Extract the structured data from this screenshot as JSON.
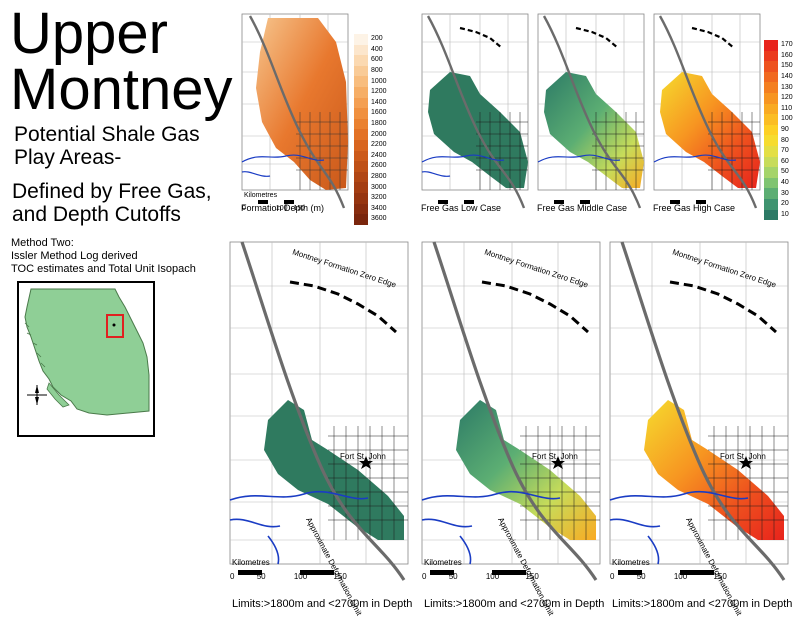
{
  "title_line1": "Upper",
  "title_line2": "Montney",
  "subtitle_line1": "Potential Shale Gas",
  "subtitle_line2": "Play Areas-",
  "defined_line1": "Defined by Free Gas,",
  "defined_line2": "and Depth Cutoffs",
  "method_line1": "Method Two:",
  "method_line2": "Issler Method Log derived",
  "method_line3": "TOC estimates and Total Unit Isopach",
  "small_maps": [
    {
      "caption": "Formation Depth (m)"
    },
    {
      "caption": "Free Gas Low Case"
    },
    {
      "caption": "Free Gas Middle Case"
    },
    {
      "caption": "Free Gas High Case"
    }
  ],
  "large_maps": [
    {
      "caption": "Limits:>1800m and <2700m in Depth"
    },
    {
      "caption": "Limits:>1800m and <2700m in Depth"
    },
    {
      "caption": "Limits:>1800m and <2700m in Depth"
    }
  ],
  "map_labels": {
    "zero_edge": "Montney Formation Zero Edge",
    "deformation": "Approximate Deformation Limit",
    "city": "Fort St. John"
  },
  "scale_bar": {
    "title": "Kilometres",
    "ticks": [
      "0",
      "25",
      "50",
      "100",
      "150"
    ]
  },
  "depth_legend": {
    "labels": [
      "200",
      "400",
      "600",
      "800",
      "1000",
      "1200",
      "1400",
      "1600",
      "1800",
      "2000",
      "2200",
      "2400",
      "2600",
      "2800",
      "3000",
      "3200",
      "3400",
      "3600"
    ],
    "colors": [
      "#fdf3e6",
      "#fce6cc",
      "#fbd9b1",
      "#f9cb97",
      "#f8bd7e",
      "#f6ae66",
      "#f49f52",
      "#f0903f",
      "#ea8130",
      "#e37226",
      "#d8651f",
      "#cc5a1a",
      "#bf5016",
      "#b14614",
      "#a43d12",
      "#963510",
      "#882d0f",
      "#7a260d"
    ]
  },
  "gas_legend": {
    "labels": [
      "170",
      "160",
      "150",
      "140",
      "130",
      "120",
      "110",
      "100",
      "90",
      "80",
      "70",
      "60",
      "50",
      "40",
      "30",
      "20",
      "10"
    ],
    "colors": [
      "#e8231c",
      "#eb3a1d",
      "#ee521e",
      "#f1691f",
      "#f47f20",
      "#f79521",
      "#f9aa22",
      "#fbbd23",
      "#fdd024",
      "#f6dc2e",
      "#e3df44",
      "#c7dc5a",
      "#a5d46a",
      "#7fc471",
      "#5cae73",
      "#3f9470",
      "#2c7a66"
    ]
  }
}
